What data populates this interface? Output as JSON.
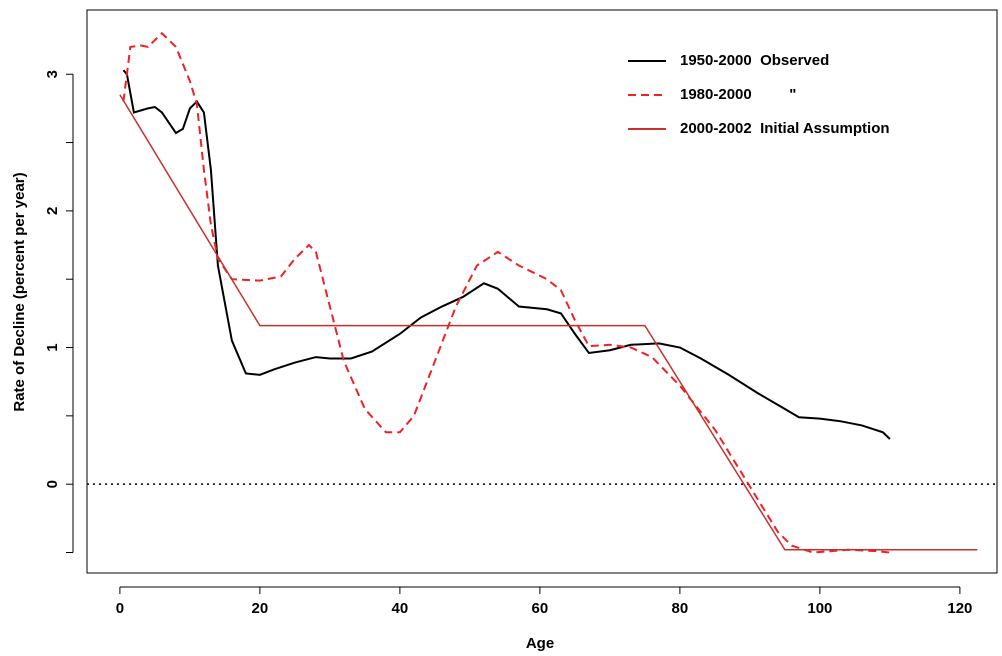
{
  "chart_data": {
    "type": "line",
    "xlabel": "Age",
    "ylabel": "Rate of Decline (percent per year)",
    "xlim": [
      -4.7,
      125.3
    ],
    "ylim": [
      -0.65,
      3.47
    ],
    "xticks": [
      0,
      20,
      40,
      60,
      80,
      100,
      120
    ],
    "yticks": [
      0,
      1,
      2,
      3
    ],
    "yminor_ticks": [
      -0.5,
      0.5,
      1.5,
      2.5
    ],
    "hline": 0,
    "legend": "top-right",
    "series": [
      {
        "name": "1950-2000  Observed",
        "color": "#000000",
        "dash": "solid",
        "x": [
          0.5,
          1,
          2,
          4,
          5,
          6,
          8,
          9,
          10,
          11,
          12,
          13,
          14,
          16,
          18,
          20,
          22,
          25,
          28,
          30,
          33,
          36,
          40,
          43,
          46,
          49,
          52,
          54,
          57,
          61,
          63,
          65,
          67,
          70,
          73,
          77,
          80,
          83,
          87,
          91,
          95,
          97,
          100,
          103,
          106,
          109,
          110
        ],
        "values": [
          3.03,
          3.0,
          2.72,
          2.75,
          2.76,
          2.72,
          2.57,
          2.6,
          2.75,
          2.8,
          2.72,
          2.3,
          1.6,
          1.05,
          0.81,
          0.8,
          0.84,
          0.89,
          0.93,
          0.92,
          0.92,
          0.97,
          1.1,
          1.22,
          1.3,
          1.37,
          1.47,
          1.43,
          1.3,
          1.28,
          1.25,
          1.1,
          0.96,
          0.98,
          1.02,
          1.03,
          1.0,
          0.92,
          0.8,
          0.67,
          0.55,
          0.49,
          0.48,
          0.46,
          0.43,
          0.38,
          0.33
        ]
      },
      {
        "name": "1980-2000         \"",
        "color": "#ee2222",
        "dash": "dashed",
        "x": [
          0.5,
          1,
          1.5,
          3,
          4,
          6,
          8,
          10,
          11,
          12,
          13,
          14,
          16,
          20,
          23,
          25,
          27,
          28,
          30,
          32,
          35,
          38,
          40,
          42,
          45,
          48,
          51,
          54,
          57,
          61,
          63,
          65,
          67,
          70,
          73,
          76,
          80,
          85,
          88,
          91,
          94,
          96,
          99,
          104,
          108,
          110
        ],
        "values": [
          2.8,
          3.0,
          3.2,
          3.21,
          3.2,
          3.3,
          3.2,
          2.95,
          2.78,
          2.3,
          1.9,
          1.65,
          1.5,
          1.49,
          1.52,
          1.65,
          1.75,
          1.7,
          1.3,
          0.9,
          0.55,
          0.38,
          0.38,
          0.5,
          0.9,
          1.3,
          1.6,
          1.7,
          1.6,
          1.5,
          1.42,
          1.2,
          1.01,
          1.02,
          1.0,
          0.93,
          0.72,
          0.4,
          0.15,
          -0.1,
          -0.35,
          -0.45,
          -0.5,
          -0.48,
          -0.49,
          -0.5
        ]
      },
      {
        "name": "2000-2002  Initial Assumption",
        "color": "#c8302c",
        "dash": "solid",
        "x": [
          0,
          20,
          75,
          95,
          122.5
        ],
        "values": [
          2.85,
          1.16,
          1.16,
          -0.48,
          -0.48
        ]
      }
    ]
  }
}
